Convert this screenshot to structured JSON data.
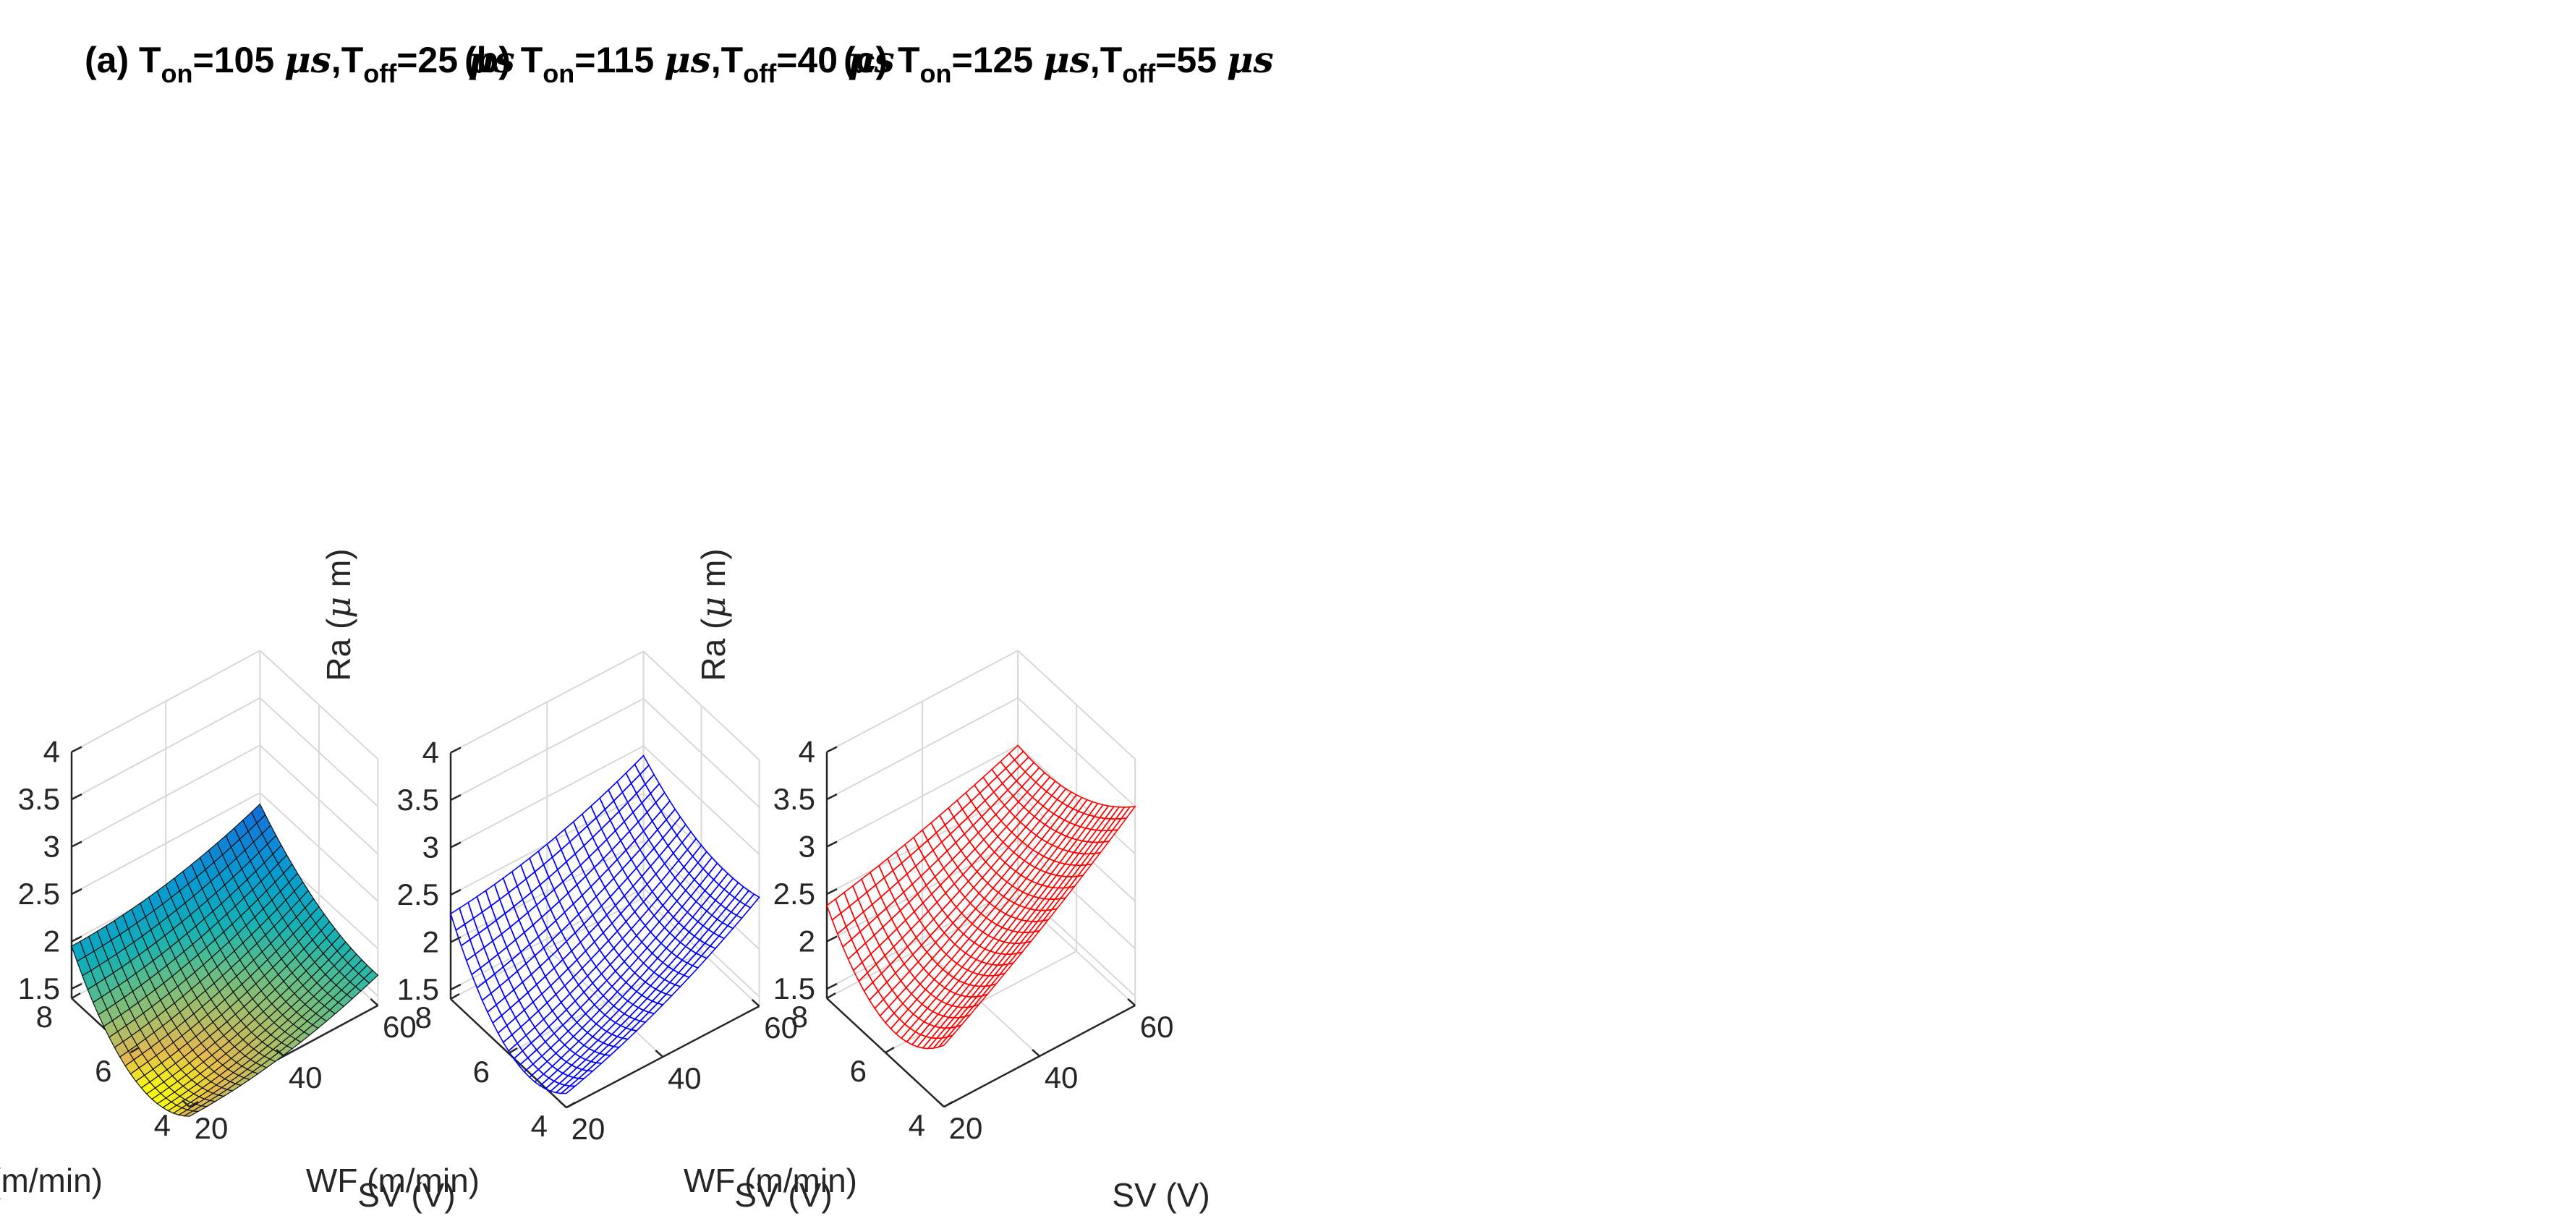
{
  "chart_data": [
    {
      "type": "surface",
      "panel": "(a)",
      "title": {
        "prefix": "(a) T",
        "sub1": "on",
        "mid1": "=105 ",
        "unit1": "μs",
        "mid2": ",T",
        "sub2": "off",
        "mid3": "=25 ",
        "unit2": "μs"
      },
      "render_style": "shaded-parula",
      "color": "#1f1f1f",
      "xlabel": "SV (V)",
      "ylabel": "WF (m/min)",
      "zlabel": {
        "prefix": "Ra (",
        "mu": "μ",
        "suffix": " m)"
      },
      "xlim": [
        20,
        60
      ],
      "ylim": [
        4,
        8
      ],
      "zlim": [
        1.4,
        4.0
      ],
      "xticks": [
        "20",
        "40",
        "60"
      ],
      "yticks": [
        "4",
        "6",
        "8"
      ],
      "zticks": [
        "1.5",
        "2",
        "2.5",
        "3",
        "3.5",
        "4"
      ],
      "corner_values": {
        "sv20_wf8": 1.95,
        "sv60_wf8": 2.38,
        "sv60_wf4": 1.72,
        "sv20_wf4": 1.3
      },
      "curvature": {
        "wf_mid": -0.45,
        "sv_mid": -0.1
      }
    },
    {
      "type": "mesh",
      "panel": "(b)",
      "title": {
        "prefix": "(b) T",
        "sub1": "on",
        "mid1": "=115 ",
        "unit1": "μs",
        "mid2": ",T",
        "sub2": "off",
        "mid3": "=40 ",
        "unit2": "μs"
      },
      "render_style": "wireframe",
      "color": "#0000ff",
      "xlabel": "SV (V)",
      "ylabel": "WF (m/min)",
      "zlabel": {
        "prefix": "Ra (",
        "mu": "μ",
        "suffix": " m)"
      },
      "xlim": [
        20,
        60
      ],
      "ylim": [
        4,
        8
      ],
      "zlim": [
        1.4,
        4.0
      ],
      "xticks": [
        "20",
        "40",
        "60"
      ],
      "yticks": [
        "4",
        "6",
        "8"
      ],
      "zticks": [
        "1.5",
        "2",
        "2.5",
        "3",
        "3.5",
        "4"
      ],
      "corner_values": {
        "sv20_wf8": 2.3,
        "sv60_wf8": 2.9,
        "sv60_wf4": 2.55,
        "sv20_wf4": 1.55
      },
      "curvature": {
        "wf_mid": -0.5,
        "sv_mid": -0.1
      }
    },
    {
      "type": "mesh",
      "panel": "(c)",
      "title": {
        "prefix": "(c) T",
        "sub1": "on",
        "mid1": "=125 ",
        "unit1": "μs",
        "mid2": ",T",
        "sub2": "off",
        "mid3": "=55 ",
        "unit2": "μs"
      },
      "render_style": "wireframe",
      "color": "#ff0000",
      "xlabel": "SV (V)",
      "ylabel": "WF (m/min)",
      "zlabel": {
        "prefix": "Ra (",
        "mu": "μ",
        "suffix": " m)"
      },
      "xlim": [
        20,
        60
      ],
      "ylim": [
        4,
        8
      ],
      "zlim": [
        1.4,
        4.0
      ],
      "xticks": [
        "20",
        "40",
        "60"
      ],
      "yticks": [
        "4",
        "6",
        "8"
      ],
      "zticks": [
        "1.5",
        "2",
        "2.5",
        "3",
        "3.5",
        "4"
      ],
      "corner_values": {
        "sv20_wf8": 2.38,
        "sv60_wf8": 3.0,
        "sv60_wf4": 3.5,
        "sv20_wf4": 2.05
      },
      "curvature": {
        "wf_mid": -0.5,
        "sv_mid": -0.05
      }
    }
  ]
}
